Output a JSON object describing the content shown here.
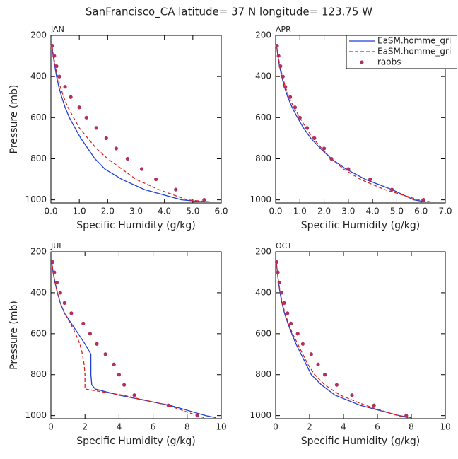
{
  "title": "SanFrancisco_CA  latitude= 37 N longitude= 123.75 W",
  "chart_data": [
    {
      "type": "line",
      "title": "JAN",
      "xlabel": "Specific Humidity (g/kg)",
      "ylabel": "Pressure (mb)",
      "y": [
        1010,
        1000,
        950,
        900,
        850,
        800,
        750,
        700,
        650,
        600,
        550,
        500,
        450,
        400,
        350,
        300,
        250
      ],
      "xlim": [
        0,
        6
      ],
      "xticks": [
        {
          "value": 0,
          "label": "0.0"
        },
        {
          "value": 1,
          "label": "1.0"
        },
        {
          "value": 2,
          "label": "2.0"
        },
        {
          "value": 3,
          "label": "3.0"
        },
        {
          "value": 4,
          "label": "4.0"
        },
        {
          "value": 5,
          "label": "5.0"
        },
        {
          "value": 6,
          "label": "6.0"
        }
      ],
      "ylim": [
        1015,
        200
      ],
      "yticks": [
        200,
        400,
        600,
        800,
        1000
      ],
      "series": [
        {
          "color": "#1f3fd6",
          "line_style": "solid",
          "values": [
            5.4,
            4.6,
            3.3,
            2.5,
            1.9,
            1.55,
            1.3,
            1.05,
            0.85,
            0.65,
            0.5,
            0.38,
            0.28,
            0.2,
            0.14,
            0.08,
            0.03
          ]
        },
        {
          "color": "#e0201b",
          "line_style": "dashed",
          "values": [
            5.6,
            4.8,
            3.8,
            3.0,
            2.5,
            2.0,
            1.6,
            1.3,
            1.0,
            0.8,
            0.6,
            0.45,
            0.33,
            0.24,
            0.16,
            0.09,
            0.04
          ]
        },
        {
          "color": "#b03060",
          "marker": "circle",
          "values": [
            null,
            5.4,
            4.4,
            3.7,
            3.2,
            2.7,
            2.3,
            1.95,
            1.6,
            1.25,
            1.0,
            0.7,
            0.5,
            0.3,
            0.2,
            0.12,
            0.05
          ]
        }
      ]
    },
    {
      "type": "line",
      "title": "APR",
      "xlabel": "Specific Humidity (g/kg)",
      "legend": "upper right",
      "y": [
        1010,
        1000,
        950,
        900,
        850,
        800,
        750,
        700,
        650,
        600,
        550,
        500,
        450,
        400,
        350,
        300,
        250
      ],
      "xlim": [
        0,
        7
      ],
      "xticks": [
        {
          "value": 0,
          "label": "0.0"
        },
        {
          "value": 1,
          "label": "1.0"
        },
        {
          "value": 2,
          "label": "2.0"
        },
        {
          "value": 3,
          "label": "3.0"
        },
        {
          "value": 4,
          "label": "4.0"
        },
        {
          "value": 5,
          "label": "5.0"
        },
        {
          "value": 6,
          "label": "6.0"
        },
        {
          "value": 7,
          "label": "7.0"
        }
      ],
      "ylim": [
        1015,
        200
      ],
      "yticks": [
        200,
        400,
        600,
        800,
        1000
      ],
      "series": [
        {
          "name": "EaSM.homme_gri",
          "color": "#1f3fd6",
          "line_style": "solid",
          "values": [
            6.2,
            5.7,
            4.8,
            3.7,
            2.9,
            2.3,
            1.85,
            1.45,
            1.15,
            0.9,
            0.68,
            0.5,
            0.36,
            0.25,
            0.16,
            0.09,
            0.04
          ]
        },
        {
          "name": "EaSM.homme_gri",
          "color": "#e0201b",
          "line_style": "dashed",
          "values": [
            6.4,
            5.9,
            4.5,
            3.5,
            2.8,
            2.3,
            1.9,
            1.55,
            1.25,
            1.0,
            0.75,
            0.55,
            0.4,
            0.28,
            0.18,
            0.1,
            0.04
          ]
        },
        {
          "name": "raobs",
          "color": "#b03060",
          "marker": "circle",
          "values": [
            null,
            6.1,
            4.8,
            3.9,
            3.0,
            2.3,
            2.0,
            1.6,
            1.3,
            1.0,
            0.8,
            0.6,
            0.4,
            0.3,
            0.2,
            0.12,
            0.06
          ]
        }
      ]
    },
    {
      "type": "line",
      "title": "JUL",
      "xlabel": "Specific Humidity (g/kg)",
      "ylabel": "Pressure (mb)",
      "y": [
        1010,
        1000,
        950,
        900,
        870,
        850,
        800,
        750,
        700,
        650,
        600,
        550,
        500,
        450,
        400,
        350,
        300,
        250
      ],
      "xlim": [
        0,
        10
      ],
      "xticks": [
        0,
        2,
        4,
        6,
        8,
        10
      ],
      "ylim": [
        1015,
        200
      ],
      "yticks": [
        200,
        400,
        600,
        800,
        1000
      ],
      "series": [
        {
          "color": "#1f3fd6",
          "line_style": "solid",
          "values": [
            9.7,
            9.1,
            7.0,
            4.0,
            2.6,
            2.4,
            2.35,
            2.35,
            2.35,
            2.0,
            1.6,
            1.2,
            0.8,
            0.55,
            0.38,
            0.24,
            0.13,
            0.05
          ]
        },
        {
          "color": "#e0201b",
          "line_style": "dashed",
          "values": [
            9.0,
            8.6,
            6.9,
            4.2,
            2.0,
            2.0,
            2.0,
            1.95,
            1.85,
            1.7,
            1.45,
            1.15,
            0.8,
            0.55,
            0.38,
            0.24,
            0.13,
            0.05
          ]
        },
        {
          "color": "#b03060",
          "marker": "circle",
          "values": [
            null,
            8.6,
            6.9,
            4.9,
            null,
            4.3,
            4.0,
            3.7,
            3.2,
            2.7,
            2.3,
            1.9,
            1.2,
            0.8,
            0.55,
            0.35,
            0.2,
            0.1
          ]
        }
      ]
    },
    {
      "type": "line",
      "title": "OCT",
      "xlabel": "Specific Humidity (g/kg)",
      "y": [
        1010,
        1000,
        950,
        900,
        850,
        800,
        750,
        700,
        650,
        600,
        550,
        500,
        450,
        400,
        350,
        300,
        250
      ],
      "xlim": [
        0,
        10
      ],
      "xticks": [
        0,
        2,
        4,
        6,
        8,
        10
      ],
      "ylim": [
        1015,
        200
      ],
      "yticks": [
        200,
        400,
        600,
        800,
        1000
      ],
      "series": [
        {
          "color": "#1f3fd6",
          "line_style": "solid",
          "values": [
            8.0,
            7.3,
            5.0,
            3.5,
            2.7,
            2.1,
            1.8,
            1.5,
            1.2,
            0.95,
            0.72,
            0.52,
            0.37,
            0.26,
            0.17,
            0.1,
            0.04
          ]
        },
        {
          "color": "#e0201b",
          "line_style": "dashed",
          "values": [
            7.8,
            7.2,
            5.3,
            3.8,
            2.9,
            2.3,
            1.9,
            1.6,
            1.3,
            1.0,
            0.76,
            0.55,
            0.39,
            0.27,
            0.18,
            0.1,
            0.04
          ]
        },
        {
          "color": "#b03060",
          "marker": "circle",
          "values": [
            null,
            7.7,
            5.8,
            4.5,
            3.6,
            2.9,
            2.5,
            2.1,
            1.6,
            1.3,
            0.9,
            0.7,
            0.5,
            0.35,
            0.22,
            0.13,
            0.06
          ]
        }
      ]
    }
  ]
}
